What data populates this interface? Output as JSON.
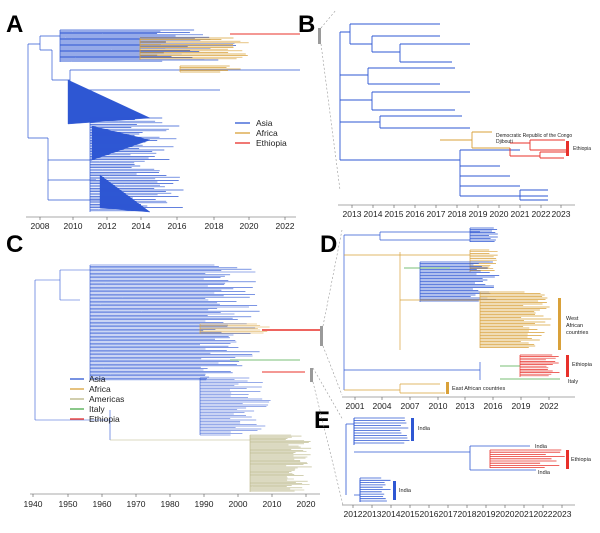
{
  "panels": {
    "A": {
      "letter": "A",
      "axis_years": [
        "2008",
        "2010",
        "2012",
        "2014",
        "2016",
        "2018",
        "2020",
        "2022"
      ],
      "legend": [
        "Asia",
        "Africa",
        "Ethiopia"
      ]
    },
    "B": {
      "letter": "B",
      "axis_years": [
        "2013",
        "2014",
        "2015",
        "2016",
        "2017",
        "2018",
        "2019",
        "2020",
        "2021",
        "2022",
        "2023"
      ],
      "labels": {
        "drc": "Democratic Republic of the Congo",
        "djibouti": "Djibouti",
        "ethiopia": "Ethiopia"
      }
    },
    "C": {
      "letter": "C",
      "axis_years": [
        "1940",
        "1950",
        "1960",
        "1970",
        "1980",
        "1990",
        "2000",
        "2010",
        "2020"
      ],
      "legend": [
        "Asia",
        "Africa",
        "Americas",
        "Italy",
        "Ethiopia"
      ]
    },
    "D": {
      "letter": "D",
      "axis_years": [
        "2001",
        "2004",
        "2007",
        "2010",
        "2013",
        "2016",
        "2019",
        "2022"
      ],
      "labels": {
        "west_africa": [
          "West",
          "African",
          "countries"
        ],
        "ethiopia": "Ethiopia",
        "italy": "Italy",
        "east_africa": "East African countries"
      }
    },
    "E": {
      "letter": "E",
      "axis_years": [
        "2012",
        "2013",
        "2014",
        "2015",
        "2016",
        "2017",
        "2018",
        "2019",
        "2020",
        "2021",
        "2022",
        "2023"
      ],
      "labels": {
        "india_1": "India",
        "india_2": "India",
        "india_3": "India",
        "india_4": "India",
        "ethiopia": "Ethiopia"
      }
    }
  },
  "colors": {
    "asia": "#2e57d3",
    "africa": "#d9a13a",
    "ethiopia": "#e8302a",
    "americas": "#b8b483",
    "italy": "#4caa4a",
    "axis": "#555555",
    "marker": "#9a9a9a"
  }
}
